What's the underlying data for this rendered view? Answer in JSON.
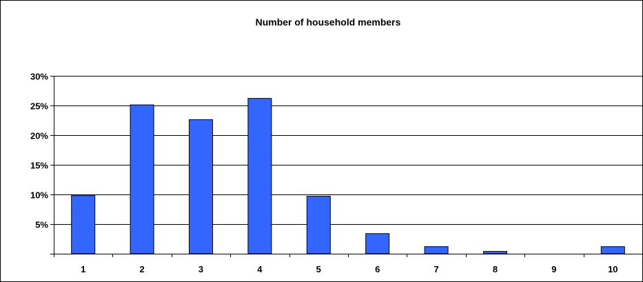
{
  "chart_data": {
    "type": "bar",
    "title": "Number of household members",
    "xlabel": "",
    "ylabel": "",
    "categories": [
      "1",
      "2",
      "3",
      "4",
      "5",
      "6",
      "7",
      "8",
      "9",
      "10"
    ],
    "values": [
      9.8,
      25.1,
      22.6,
      26.2,
      9.7,
      3.4,
      1.2,
      0.4,
      0,
      1.2
    ],
    "ylim": [
      0,
      30
    ],
    "y_ticks": [
      5,
      10,
      15,
      20,
      25,
      30
    ],
    "y_tick_labels": [
      "5%",
      "10%",
      "15%",
      "20%",
      "25%",
      "30%"
    ],
    "grid": true,
    "legend": "none",
    "bar_color": "#3366ff"
  }
}
